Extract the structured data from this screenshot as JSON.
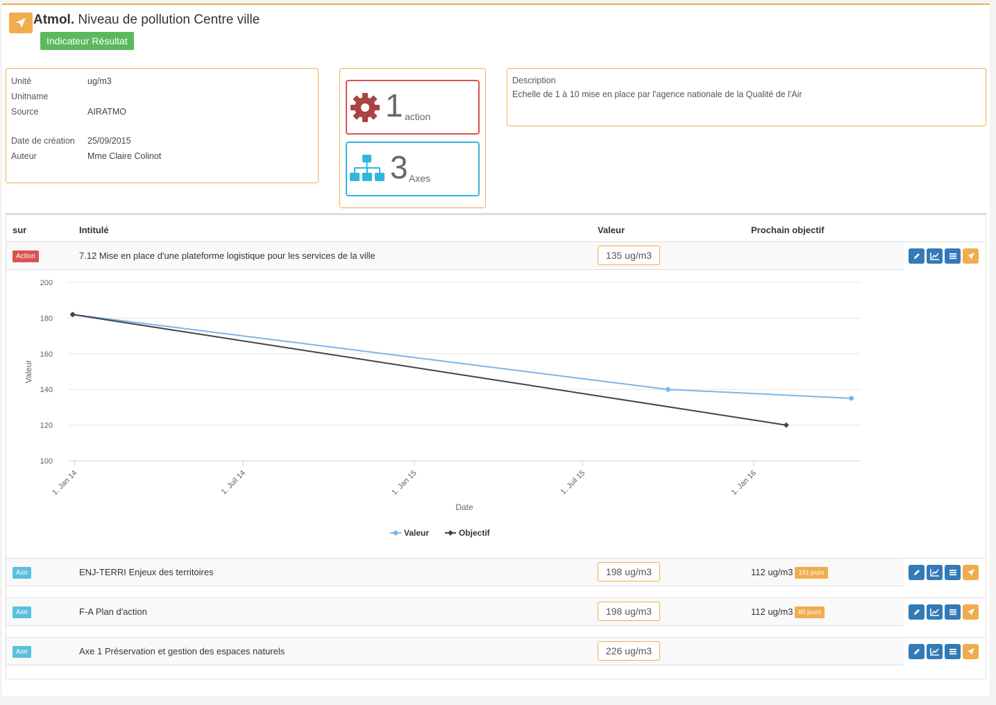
{
  "header": {
    "title_prefix": "Atmol.",
    "title": " Niveau de pollution Centre ville",
    "badge": "Indicateur Résultat",
    "accent": "#f0ad4e"
  },
  "info": {
    "unite_label": "Unité",
    "unite_value": "ug/m3",
    "unitname_label": "Unitname",
    "unitname_value": "",
    "source_label": "Source",
    "source_value": "AIRATMO",
    "date_label": "Date de création",
    "date_value": "25/09/2015",
    "auteur_label": "Auteur",
    "auteur_value": "Mme Claire Colinot"
  },
  "stats": {
    "actions_count": "1",
    "actions_label": "action",
    "axes_count": "3",
    "axes_label": "Axes"
  },
  "description": {
    "label": "Description",
    "text": "Echelle de 1 à 10 mise en place par l'agence nationale de la Qualité de l'Air"
  },
  "table": {
    "headers": [
      "sur",
      "Intitulé",
      "Valeur",
      "Prochain objectif"
    ],
    "rows": [
      {
        "tag": "Action",
        "title": "7.12 Mise en place d'une plateforme logistique pour les services de la ville",
        "value": "135 ug/m3",
        "next": "",
        "days": ""
      },
      {
        "tag": "Axe",
        "title": "ENJ-TERRI Enjeux des territoires",
        "value": "198 ug/m3",
        "next": "112 ug/m3",
        "days": "191 jours"
      },
      {
        "tag": "Axe",
        "title": "F-A Plan d'action",
        "value": "198 ug/m3",
        "next": "112 ug/m3",
        "days": "85 jours"
      },
      {
        "tag": "Axe",
        "title": "Axe 1 Préservation et gestion des espaces naturels",
        "value": "226 ug/m3",
        "next": "",
        "days": ""
      }
    ]
  },
  "chart_data": {
    "type": "line",
    "xlabel": "Date",
    "ylabel": "Valeur",
    "ylim": [
      100,
      200
    ],
    "yticks": [
      100,
      120,
      140,
      160,
      180,
      200
    ],
    "xticks": [
      "1. Jan 14",
      "1. Juil 14",
      "1. Jan 15",
      "1. Juil 15",
      "1. Jan 16"
    ],
    "xtick_dates": [
      "2014-01-01",
      "2014-07-01",
      "2015-01-01",
      "2015-07-01",
      "2016-01-01"
    ],
    "xlim": [
      "2013-12-25",
      "2016-04-25"
    ],
    "legend_position": "bottom-center",
    "grid": true,
    "series": [
      {
        "name": "Valeur",
        "color": "#7cb5ec",
        "points": [
          [
            "2013-12-30",
            182
          ],
          [
            "2015-10-01",
            140
          ],
          [
            "2016-04-15",
            135
          ]
        ]
      },
      {
        "name": "Objectif",
        "color": "#434348",
        "points": [
          [
            "2013-12-30",
            182
          ],
          [
            "2016-02-05",
            120
          ]
        ]
      }
    ]
  }
}
